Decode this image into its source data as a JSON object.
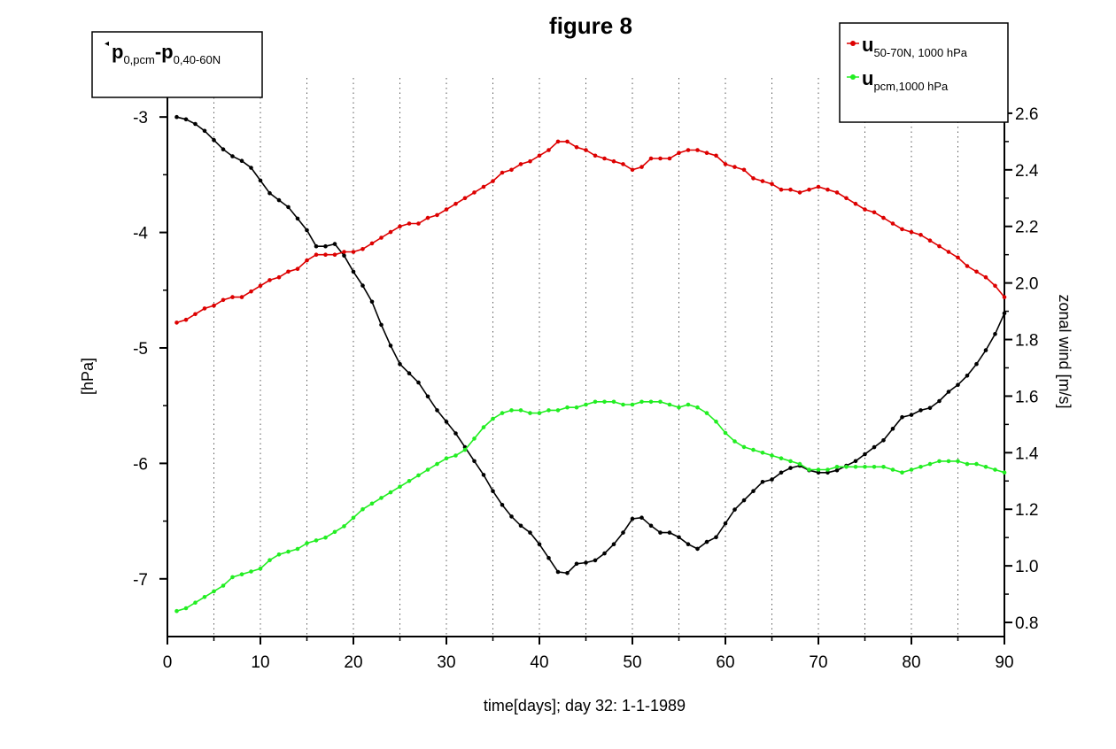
{
  "chart_data": {
    "type": "line",
    "title": "figure 8",
    "xlabel": "time[days]; day 32: 1-1-1989",
    "ylabel_left": "[hPa]",
    "ylabel_right": "zonal wind [m/s]",
    "xlim": [
      0,
      90
    ],
    "ylim_left": [
      -7.5,
      -2.6
    ],
    "ylim_right": [
      0.75,
      2.75
    ],
    "x_ticks": [
      0,
      10,
      20,
      30,
      40,
      50,
      60,
      70,
      80,
      90
    ],
    "y_left_ticks": [
      -3,
      -4,
      -5,
      -6,
      -7
    ],
    "y_right_ticks": [
      0.8,
      1.0,
      1.2,
      1.4,
      1.6,
      1.8,
      2.0,
      2.2,
      2.4,
      2.6
    ],
    "grid": "vertical dotted",
    "legend_left": {
      "main": "p",
      "sub1": "0,pcm",
      "dash": "-p",
      "sub2": "0,40-60N"
    },
    "legend_right": [
      {
        "main": "u",
        "sub": "50-70N, 1000 hPa",
        "color": "#dd0000"
      },
      {
        "main": "u",
        "sub": "pcm,1000 hPa",
        "color": "#22ee22"
      }
    ],
    "series": [
      {
        "color": "#000000",
        "axis": "left",
        "points": [
          [
            1,
            -3.0
          ],
          [
            2,
            -3.02
          ],
          [
            3,
            -3.06
          ],
          [
            4,
            -3.12
          ],
          [
            5,
            -3.2
          ],
          [
            6,
            -3.28
          ],
          [
            7,
            -3.34
          ],
          [
            8,
            -3.38
          ],
          [
            9,
            -3.44
          ],
          [
            10,
            -3.55
          ],
          [
            11,
            -3.66
          ],
          [
            12,
            -3.72
          ],
          [
            13,
            -3.78
          ],
          [
            14,
            -3.88
          ],
          [
            15,
            -3.98
          ],
          [
            16,
            -4.12
          ],
          [
            17,
            -4.12
          ],
          [
            18,
            -4.1
          ],
          [
            19,
            -4.2
          ],
          [
            20,
            -4.34
          ],
          [
            21,
            -4.46
          ],
          [
            22,
            -4.6
          ],
          [
            23,
            -4.8
          ],
          [
            24,
            -4.98
          ],
          [
            25,
            -5.14
          ],
          [
            26,
            -5.22
          ],
          [
            27,
            -5.3
          ],
          [
            28,
            -5.42
          ],
          [
            29,
            -5.54
          ],
          [
            30,
            -5.64
          ],
          [
            31,
            -5.74
          ],
          [
            32,
            -5.86
          ],
          [
            33,
            -5.98
          ],
          [
            34,
            -6.1
          ],
          [
            35,
            -6.24
          ],
          [
            36,
            -6.36
          ],
          [
            37,
            -6.46
          ],
          [
            38,
            -6.54
          ],
          [
            39,
            -6.6
          ],
          [
            40,
            -6.7
          ],
          [
            41,
            -6.82
          ],
          [
            42,
            -6.94
          ],
          [
            43,
            -6.95
          ],
          [
            44,
            -6.87
          ],
          [
            45,
            -6.86
          ],
          [
            46,
            -6.84
          ],
          [
            47,
            -6.78
          ],
          [
            48,
            -6.7
          ],
          [
            49,
            -6.6
          ],
          [
            50,
            -6.48
          ],
          [
            51,
            -6.47
          ],
          [
            52,
            -6.54
          ],
          [
            53,
            -6.6
          ],
          [
            54,
            -6.6
          ],
          [
            55,
            -6.64
          ],
          [
            56,
            -6.7
          ],
          [
            57,
            -6.74
          ],
          [
            58,
            -6.68
          ],
          [
            59,
            -6.64
          ],
          [
            60,
            -6.52
          ],
          [
            61,
            -6.4
          ],
          [
            62,
            -6.32
          ],
          [
            63,
            -6.24
          ],
          [
            64,
            -6.16
          ],
          [
            65,
            -6.14
          ],
          [
            66,
            -6.08
          ],
          [
            67,
            -6.04
          ],
          [
            68,
            -6.02
          ],
          [
            69,
            -6.06
          ],
          [
            70,
            -6.08
          ],
          [
            71,
            -6.08
          ],
          [
            72,
            -6.06
          ],
          [
            73,
            -6.02
          ],
          [
            74,
            -5.98
          ],
          [
            75,
            -5.92
          ],
          [
            76,
            -5.86
          ],
          [
            77,
            -5.8
          ],
          [
            78,
            -5.7
          ],
          [
            79,
            -5.6
          ],
          [
            80,
            -5.58
          ],
          [
            81,
            -5.54
          ],
          [
            82,
            -5.52
          ],
          [
            83,
            -5.46
          ],
          [
            84,
            -5.38
          ],
          [
            85,
            -5.32
          ],
          [
            86,
            -5.24
          ],
          [
            87,
            -5.14
          ],
          [
            88,
            -5.02
          ],
          [
            89,
            -4.88
          ],
          [
            90,
            -4.7
          ]
        ]
      },
      {
        "color": "#dd0000",
        "axis": "right",
        "points": [
          [
            1,
            1.86
          ],
          [
            2,
            1.87
          ],
          [
            3,
            1.89
          ],
          [
            4,
            1.91
          ],
          [
            5,
            1.92
          ],
          [
            6,
            1.94
          ],
          [
            7,
            1.95
          ],
          [
            8,
            1.95
          ],
          [
            9,
            1.97
          ],
          [
            10,
            1.99
          ],
          [
            11,
            2.01
          ],
          [
            12,
            2.02
          ],
          [
            13,
            2.04
          ],
          [
            14,
            2.05
          ],
          [
            15,
            2.08
          ],
          [
            16,
            2.1
          ],
          [
            17,
            2.1
          ],
          [
            18,
            2.1
          ],
          [
            19,
            2.11
          ],
          [
            20,
            2.11
          ],
          [
            21,
            2.12
          ],
          [
            22,
            2.14
          ],
          [
            23,
            2.16
          ],
          [
            24,
            2.18
          ],
          [
            25,
            2.2
          ],
          [
            26,
            2.21
          ],
          [
            27,
            2.21
          ],
          [
            28,
            2.23
          ],
          [
            29,
            2.24
          ],
          [
            30,
            2.26
          ],
          [
            31,
            2.28
          ],
          [
            32,
            2.3
          ],
          [
            33,
            2.32
          ],
          [
            34,
            2.34
          ],
          [
            35,
            2.36
          ],
          [
            36,
            2.39
          ],
          [
            37,
            2.4
          ],
          [
            38,
            2.42
          ],
          [
            39,
            2.43
          ],
          [
            40,
            2.45
          ],
          [
            41,
            2.47
          ],
          [
            42,
            2.5
          ],
          [
            43,
            2.5
          ],
          [
            44,
            2.48
          ],
          [
            45,
            2.47
          ],
          [
            46,
            2.45
          ],
          [
            47,
            2.44
          ],
          [
            48,
            2.43
          ],
          [
            49,
            2.42
          ],
          [
            50,
            2.4
          ],
          [
            51,
            2.41
          ],
          [
            52,
            2.44
          ],
          [
            53,
            2.44
          ],
          [
            54,
            2.44
          ],
          [
            55,
            2.46
          ],
          [
            56,
            2.47
          ],
          [
            57,
            2.47
          ],
          [
            58,
            2.46
          ],
          [
            59,
            2.45
          ],
          [
            60,
            2.42
          ],
          [
            61,
            2.41
          ],
          [
            62,
            2.4
          ],
          [
            63,
            2.37
          ],
          [
            64,
            2.36
          ],
          [
            65,
            2.35
          ],
          [
            66,
            2.33
          ],
          [
            67,
            2.33
          ],
          [
            68,
            2.32
          ],
          [
            69,
            2.33
          ],
          [
            70,
            2.34
          ],
          [
            71,
            2.33
          ],
          [
            72,
            2.32
          ],
          [
            73,
            2.3
          ],
          [
            74,
            2.28
          ],
          [
            75,
            2.26
          ],
          [
            76,
            2.25
          ],
          [
            77,
            2.23
          ],
          [
            78,
            2.21
          ],
          [
            79,
            2.19
          ],
          [
            80,
            2.18
          ],
          [
            81,
            2.17
          ],
          [
            82,
            2.15
          ],
          [
            83,
            2.13
          ],
          [
            84,
            2.11
          ],
          [
            85,
            2.09
          ],
          [
            86,
            2.06
          ],
          [
            87,
            2.04
          ],
          [
            88,
            2.02
          ],
          [
            89,
            1.99
          ],
          [
            90,
            1.95
          ]
        ]
      },
      {
        "color": "#22ee22",
        "axis": "right",
        "points": [
          [
            1,
            0.84
          ],
          [
            2,
            0.85
          ],
          [
            3,
            0.87
          ],
          [
            4,
            0.89
          ],
          [
            5,
            0.91
          ],
          [
            6,
            0.93
          ],
          [
            7,
            0.96
          ],
          [
            8,
            0.97
          ],
          [
            9,
            0.98
          ],
          [
            10,
            0.99
          ],
          [
            11,
            1.02
          ],
          [
            12,
            1.04
          ],
          [
            13,
            1.05
          ],
          [
            14,
            1.06
          ],
          [
            15,
            1.08
          ],
          [
            16,
            1.09
          ],
          [
            17,
            1.1
          ],
          [
            18,
            1.12
          ],
          [
            19,
            1.14
          ],
          [
            20,
            1.17
          ],
          [
            21,
            1.2
          ],
          [
            22,
            1.22
          ],
          [
            23,
            1.24
          ],
          [
            24,
            1.26
          ],
          [
            25,
            1.28
          ],
          [
            26,
            1.3
          ],
          [
            27,
            1.32
          ],
          [
            28,
            1.34
          ],
          [
            29,
            1.36
          ],
          [
            30,
            1.38
          ],
          [
            31,
            1.39
          ],
          [
            32,
            1.41
          ],
          [
            33,
            1.45
          ],
          [
            34,
            1.49
          ],
          [
            35,
            1.52
          ],
          [
            36,
            1.54
          ],
          [
            37,
            1.55
          ],
          [
            38,
            1.55
          ],
          [
            39,
            1.54
          ],
          [
            40,
            1.54
          ],
          [
            41,
            1.55
          ],
          [
            42,
            1.55
          ],
          [
            43,
            1.56
          ],
          [
            44,
            1.56
          ],
          [
            45,
            1.57
          ],
          [
            46,
            1.58
          ],
          [
            47,
            1.58
          ],
          [
            48,
            1.58
          ],
          [
            49,
            1.57
          ],
          [
            50,
            1.57
          ],
          [
            51,
            1.58
          ],
          [
            52,
            1.58
          ],
          [
            53,
            1.58
          ],
          [
            54,
            1.57
          ],
          [
            55,
            1.56
          ],
          [
            56,
            1.57
          ],
          [
            57,
            1.56
          ],
          [
            58,
            1.54
          ],
          [
            59,
            1.51
          ],
          [
            60,
            1.47
          ],
          [
            61,
            1.44
          ],
          [
            62,
            1.42
          ],
          [
            63,
            1.41
          ],
          [
            64,
            1.4
          ],
          [
            65,
            1.39
          ],
          [
            66,
            1.38
          ],
          [
            67,
            1.37
          ],
          [
            68,
            1.36
          ],
          [
            69,
            1.34
          ],
          [
            70,
            1.34
          ],
          [
            71,
            1.34
          ],
          [
            72,
            1.35
          ],
          [
            73,
            1.35
          ],
          [
            74,
            1.35
          ],
          [
            75,
            1.35
          ],
          [
            76,
            1.35
          ],
          [
            77,
            1.35
          ],
          [
            78,
            1.34
          ],
          [
            79,
            1.33
          ],
          [
            80,
            1.34
          ],
          [
            81,
            1.35
          ],
          [
            82,
            1.36
          ],
          [
            83,
            1.37
          ],
          [
            84,
            1.37
          ],
          [
            85,
            1.37
          ],
          [
            86,
            1.36
          ],
          [
            87,
            1.36
          ],
          [
            88,
            1.35
          ],
          [
            89,
            1.34
          ],
          [
            90,
            1.33
          ]
        ]
      }
    ]
  }
}
